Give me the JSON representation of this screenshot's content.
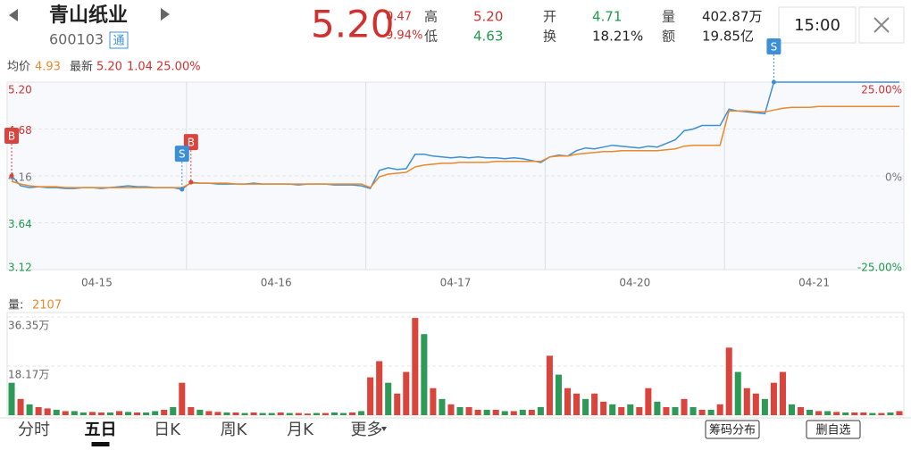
{
  "header": {
    "name": "青山纸业",
    "code": "600103",
    "tag": "通",
    "price": "5.20",
    "change": "0.47",
    "change_pct": "9.94%",
    "stats": [
      {
        "label": "高",
        "value": "5.20",
        "color": "#d0302e"
      },
      {
        "label": "低",
        "value": "4.63",
        "color": "#1f9a4d"
      },
      {
        "label": "开",
        "value": "4.71",
        "color": "#1f9a4d"
      },
      {
        "label": "换",
        "value": "18.21%",
        "color": "#222"
      },
      {
        "label": "量",
        "value": "402.87万",
        "color": "#222"
      },
      {
        "label": "额",
        "value": "19.85亿",
        "color": "#222"
      }
    ],
    "time": "15:00"
  },
  "summary": {
    "avg_label": "均价",
    "avg": "4.93",
    "latest_label": "最新",
    "latest": "5.20",
    "change": "1.04",
    "pct": "25.00%"
  },
  "chart_data": [
    {
      "type": "line",
      "days": [
        "04-15",
        "04-16",
        "04-17",
        "04-20",
        "04-21"
      ],
      "ylim": [
        3.12,
        5.2
      ],
      "yticks": [
        {
          "value": 5.2,
          "label": "5.20"
        },
        4.68,
        4.16,
        3.64,
        3.12
      ],
      "y2lim": [
        -25,
        25
      ],
      "y2ticks": [
        {
          "value": 25,
          "label": "25.00%"
        },
        {
          "value": 0,
          "label": "0%"
        },
        {
          "value": -25,
          "label": "-25.00%"
        }
      ],
      "grid": true,
      "series": [
        {
          "color": "#3d8fd6",
          "values": [
            4.16,
            4.05,
            4.03,
            4.04,
            4.03,
            4.03,
            4.02,
            4.02,
            4.03,
            4.03,
            4.02,
            4.03,
            4.04,
            4.05,
            4.04,
            4.04,
            4.03,
            4.03,
            4.03,
            4.01,
            4.09,
            4.08,
            4.08,
            4.07,
            4.07,
            4.07,
            4.07,
            4.08,
            4.07,
            4.07,
            4.07,
            4.07,
            4.06,
            4.07,
            4.07,
            4.07,
            4.06,
            4.06,
            4.06,
            4.05,
            4.02,
            4.22,
            4.25,
            4.23,
            4.24,
            4.4,
            4.4,
            4.38,
            4.37,
            4.36,
            4.37,
            4.36,
            4.37,
            4.36,
            4.36,
            4.35,
            4.36,
            4.35,
            4.33,
            4.31,
            4.37,
            4.39,
            4.38,
            4.44,
            4.47,
            4.46,
            4.48,
            4.5,
            4.49,
            4.48,
            4.47,
            4.49,
            4.48,
            4.52,
            4.56,
            4.66,
            4.68,
            4.72,
            4.72,
            4.72,
            4.9,
            4.88,
            4.87,
            4.86,
            4.85,
            5.2,
            5.2,
            5.2,
            5.2,
            5.2,
            5.2,
            5.2,
            5.2,
            5.2,
            5.2,
            5.2,
            5.2,
            5.2,
            5.2,
            5.2
          ]
        },
        {
          "color": "#e8892c",
          "values": [
            4.1,
            4.07,
            4.05,
            4.04,
            4.04,
            4.04,
            4.03,
            4.03,
            4.03,
            4.03,
            4.03,
            4.03,
            4.03,
            4.03,
            4.03,
            4.03,
            4.03,
            4.03,
            4.03,
            4.03,
            4.08,
            4.08,
            4.08,
            4.08,
            4.08,
            4.07,
            4.07,
            4.07,
            4.07,
            4.07,
            4.07,
            4.07,
            4.07,
            4.07,
            4.07,
            4.07,
            4.07,
            4.07,
            4.07,
            4.07,
            4.03,
            4.15,
            4.18,
            4.19,
            4.2,
            4.26,
            4.28,
            4.29,
            4.3,
            4.3,
            4.31,
            4.31,
            4.31,
            4.31,
            4.32,
            4.32,
            4.32,
            4.32,
            4.32,
            4.32,
            4.37,
            4.38,
            4.38,
            4.4,
            4.41,
            4.42,
            4.43,
            4.43,
            4.44,
            4.44,
            4.44,
            4.44,
            4.44,
            4.45,
            4.46,
            4.49,
            4.5,
            4.5,
            4.5,
            4.5,
            4.88,
            4.88,
            4.88,
            4.87,
            4.87,
            4.89,
            4.91,
            4.92,
            4.92,
            4.92,
            4.93,
            4.93,
            4.93,
            4.93,
            4.93,
            4.93,
            4.93,
            4.93,
            4.93,
            4.93
          ]
        }
      ],
      "markers": [
        {
          "label": "B",
          "color": "#d9453c",
          "index": 0
        },
        {
          "label": "B",
          "color": "#d9453c",
          "index": 20
        },
        {
          "label": "S",
          "color": "#3d8fd6",
          "index": 19
        },
        {
          "label": "S",
          "color": "#3d8fd6",
          "index": 85
        }
      ]
    },
    {
      "type": "bar",
      "label": "量:",
      "current": "2107",
      "ylim": [
        0,
        36.35
      ],
      "yticks": [
        {
          "value": 36.35,
          "label": "36.35万"
        },
        {
          "value": 18.17,
          "label": "18.17万"
        }
      ],
      "up_color": "#d9453c",
      "down_color": "#2e9a57",
      "values": [
        12,
        6,
        4,
        3,
        2.5,
        2,
        1.5,
        1.5,
        1,
        1.2,
        1,
        1,
        1.5,
        1.2,
        1,
        1,
        1.5,
        2,
        3,
        12,
        3,
        2,
        1.5,
        1.2,
        1,
        1,
        0.8,
        1,
        0.8,
        0.8,
        1,
        0.8,
        0.8,
        0.6,
        0.8,
        0.8,
        1,
        0.8,
        1,
        1.5,
        14,
        20,
        12,
        8,
        16,
        36,
        30,
        10,
        6,
        4,
        3,
        3,
        2,
        2,
        2,
        1.5,
        1.5,
        2,
        2,
        3,
        22,
        15,
        10,
        8,
        6,
        8,
        5,
        4,
        3,
        4,
        3,
        10,
        5,
        3,
        3,
        6,
        3,
        2,
        2,
        4,
        25,
        16,
        10,
        8,
        6,
        12,
        16,
        4,
        3,
        2,
        1.5,
        1.5,
        1.2,
        1,
        1,
        1,
        0.8,
        0.8,
        1,
        1.5
      ],
      "up": [
        0,
        1,
        0,
        1,
        1,
        0,
        1,
        0,
        0,
        1,
        1,
        0,
        1,
        0,
        1,
        0,
        0,
        1,
        0,
        1,
        1,
        0,
        1,
        1,
        0,
        1,
        0,
        1,
        0,
        0,
        1,
        0,
        1,
        1,
        0,
        1,
        0,
        0,
        1,
        0,
        1,
        1,
        0,
        1,
        1,
        1,
        0,
        1,
        0,
        1,
        0,
        1,
        1,
        0,
        1,
        0,
        1,
        0,
        1,
        0,
        1,
        0,
        1,
        1,
        0,
        1,
        1,
        0,
        1,
        0,
        1,
        1,
        0,
        1,
        0,
        1,
        0,
        1,
        0,
        1,
        1,
        0,
        1,
        1,
        0,
        1,
        1,
        0,
        1,
        0,
        1,
        0,
        1,
        0,
        1,
        1,
        0,
        1,
        0,
        1
      ]
    }
  ],
  "tabs": [
    "分时",
    "五日",
    "日K",
    "周K",
    "月K",
    "更多"
  ],
  "active_tab": 1,
  "buttons": [
    "筹码分布",
    "删自选"
  ]
}
